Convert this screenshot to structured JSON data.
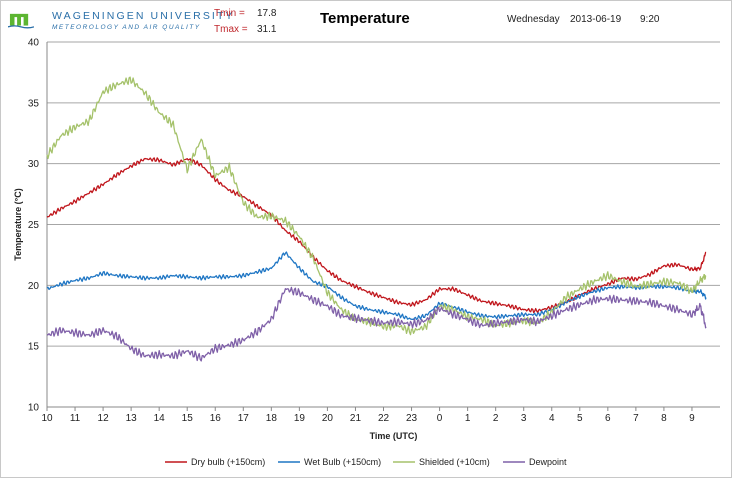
{
  "header": {
    "logo_title": "WAGENINGEN UNIVERSITY",
    "logo_subtitle": "METEOROLOGY AND AIR QUALITY",
    "tmin_label": "Tmin =",
    "tmin_value": "17.8",
    "tmax_label": "Tmax =",
    "tmax_value": "31.1",
    "weekday": "Wednesday",
    "date": "2013-06-19",
    "time": "9:20"
  },
  "colors": {
    "dry": "#c0161c",
    "wet": "#1f76c4",
    "shielded": "#a5c26b",
    "dew": "#7f60a8",
    "grid": "#a6a6a6",
    "logo_green": "#5cb531"
  },
  "chart_data": {
    "type": "line",
    "title": "Temperature",
    "xlabel": "Time (UTC)",
    "ylabel": "Temperature (°C)",
    "ylim": [
      10,
      40
    ],
    "yticks": [
      "10",
      "15",
      "20",
      "25",
      "30",
      "35",
      "40"
    ],
    "xtick_labels": [
      "10",
      "11",
      "12",
      "13",
      "14",
      "15",
      "16",
      "17",
      "18",
      "19",
      "20",
      "21",
      "22",
      "23",
      "0",
      "1",
      "2",
      "3",
      "4",
      "5",
      "6",
      "7",
      "8",
      "9"
    ],
    "xlim_hours_elapsed": [
      0,
      24
    ],
    "grid": true,
    "legend_position": "bottom",
    "series": [
      {
        "name": "Dry bulb (+150cm)",
        "color": "#c0161c",
        "points": [
          [
            0,
            25.6
          ],
          [
            0.5,
            26.3
          ],
          [
            1,
            26.9
          ],
          [
            1.5,
            27.6
          ],
          [
            2,
            28.3
          ],
          [
            2.5,
            29.1
          ],
          [
            3,
            29.8
          ],
          [
            3.5,
            30.4
          ],
          [
            4,
            30.3
          ],
          [
            4.5,
            29.9
          ],
          [
            5,
            30.4
          ],
          [
            5.5,
            29.9
          ],
          [
            6,
            28.7
          ],
          [
            6.5,
            27.8
          ],
          [
            7,
            27.3
          ],
          [
            7.5,
            26.5
          ],
          [
            8,
            25.8
          ],
          [
            8.5,
            24.5
          ],
          [
            9,
            23.6
          ],
          [
            9.5,
            22.3
          ],
          [
            10,
            21.2
          ],
          [
            10.5,
            20.4
          ],
          [
            11,
            19.9
          ],
          [
            11.5,
            19.4
          ],
          [
            12,
            19.0
          ],
          [
            12.5,
            18.6
          ],
          [
            13,
            18.4
          ],
          [
            13.5,
            18.8
          ],
          [
            14,
            19.7
          ],
          [
            14.5,
            19.7
          ],
          [
            15,
            19.2
          ],
          [
            15.5,
            18.7
          ],
          [
            16,
            18.5
          ],
          [
            16.5,
            18.3
          ],
          [
            17,
            18.0
          ],
          [
            17.5,
            17.9
          ],
          [
            18,
            18.2
          ],
          [
            18.5,
            18.6
          ],
          [
            19,
            19.2
          ],
          [
            19.5,
            19.7
          ],
          [
            20,
            20.1
          ],
          [
            20.5,
            20.6
          ],
          [
            21,
            20.5
          ],
          [
            21.5,
            20.9
          ],
          [
            22,
            21.6
          ],
          [
            22.5,
            21.7
          ],
          [
            23,
            21.3
          ],
          [
            23.3,
            21.4
          ],
          [
            23.5,
            22.7
          ]
        ]
      },
      {
        "name": "Wet Bulb (+150cm)",
        "color": "#1f76c4",
        "points": [
          [
            0,
            19.7
          ],
          [
            0.5,
            20.1
          ],
          [
            1,
            20.4
          ],
          [
            1.5,
            20.6
          ],
          [
            2,
            21.0
          ],
          [
            2.5,
            20.8
          ],
          [
            3,
            20.7
          ],
          [
            3.5,
            20.6
          ],
          [
            4,
            20.6
          ],
          [
            4.5,
            20.8
          ],
          [
            5,
            20.7
          ],
          [
            5.5,
            20.6
          ],
          [
            6,
            20.7
          ],
          [
            6.5,
            20.7
          ],
          [
            7,
            20.8
          ],
          [
            7.5,
            21.1
          ],
          [
            8,
            21.4
          ],
          [
            8.5,
            22.7
          ],
          [
            9,
            21.4
          ],
          [
            9.5,
            20.3
          ],
          [
            10,
            19.9
          ],
          [
            10.5,
            19.0
          ],
          [
            11,
            18.3
          ],
          [
            11.5,
            18.0
          ],
          [
            12,
            17.8
          ],
          [
            12.5,
            17.6
          ],
          [
            13,
            17.2
          ],
          [
            13.5,
            17.5
          ],
          [
            14,
            18.5
          ],
          [
            14.5,
            18.2
          ],
          [
            15,
            17.8
          ],
          [
            15.5,
            17.5
          ],
          [
            16,
            17.4
          ],
          [
            16.5,
            17.5
          ],
          [
            17,
            17.6
          ],
          [
            17.5,
            17.6
          ],
          [
            18,
            18.0
          ],
          [
            18.5,
            18.6
          ],
          [
            19,
            19.1
          ],
          [
            19.5,
            19.5
          ],
          [
            20,
            19.8
          ],
          [
            20.5,
            19.9
          ],
          [
            21,
            19.8
          ],
          [
            21.5,
            19.9
          ],
          [
            22,
            19.9
          ],
          [
            22.5,
            19.8
          ],
          [
            23,
            19.5
          ],
          [
            23.3,
            19.5
          ],
          [
            23.5,
            19.0
          ]
        ]
      },
      {
        "name": "Shielded (+10cm)",
        "color": "#a5c26b",
        "points": [
          [
            0,
            30.6
          ],
          [
            0.5,
            32.3
          ],
          [
            1,
            33.0
          ],
          [
            1.5,
            33.5
          ],
          [
            2,
            35.9
          ],
          [
            2.5,
            36.5
          ],
          [
            3,
            36.9
          ],
          [
            3.5,
            35.8
          ],
          [
            4,
            34.2
          ],
          [
            4.5,
            33.2
          ],
          [
            5,
            29.5
          ],
          [
            5.5,
            32.0
          ],
          [
            6,
            29.0
          ],
          [
            6.5,
            29.7
          ],
          [
            7,
            26.8
          ],
          [
            7.5,
            25.6
          ],
          [
            8,
            25.7
          ],
          [
            8.5,
            25.3
          ],
          [
            9,
            24.0
          ],
          [
            9.5,
            22.2
          ],
          [
            10,
            19.4
          ],
          [
            10.5,
            18.0
          ],
          [
            11,
            17.2
          ],
          [
            11.5,
            17.0
          ],
          [
            12,
            16.6
          ],
          [
            12.5,
            16.7
          ],
          [
            13,
            16.2
          ],
          [
            13.5,
            16.6
          ],
          [
            14,
            18.3
          ],
          [
            14.5,
            18.0
          ],
          [
            15,
            17.4
          ],
          [
            15.5,
            17.2
          ],
          [
            16,
            16.7
          ],
          [
            16.5,
            16.9
          ],
          [
            17,
            17.1
          ],
          [
            17.5,
            16.9
          ],
          [
            18,
            17.8
          ],
          [
            18.5,
            19.0
          ],
          [
            19,
            19.7
          ],
          [
            19.5,
            20.3
          ],
          [
            20,
            20.8
          ],
          [
            20.5,
            20.3
          ],
          [
            21,
            19.9
          ],
          [
            21.5,
            20.1
          ],
          [
            22,
            20.3
          ],
          [
            22.5,
            20.2
          ],
          [
            23,
            19.5
          ],
          [
            23.3,
            20.4
          ],
          [
            23.5,
            20.8
          ]
        ]
      },
      {
        "name": "Dewpoint",
        "color": "#7f60a8",
        "points": [
          [
            0,
            15.9
          ],
          [
            0.5,
            16.3
          ],
          [
            1,
            16.1
          ],
          [
            1.5,
            15.9
          ],
          [
            2,
            16.3
          ],
          [
            2.5,
            15.8
          ],
          [
            3,
            14.8
          ],
          [
            3.5,
            14.2
          ],
          [
            4,
            14.3
          ],
          [
            4.5,
            14.2
          ],
          [
            5,
            14.6
          ],
          [
            5.5,
            14.0
          ],
          [
            6,
            14.8
          ],
          [
            6.5,
            15.1
          ],
          [
            7,
            15.5
          ],
          [
            7.5,
            16.2
          ],
          [
            8,
            17.2
          ],
          [
            8.5,
            19.7
          ],
          [
            9,
            19.4
          ],
          [
            9.5,
            18.8
          ],
          [
            10,
            18.3
          ],
          [
            10.5,
            17.5
          ],
          [
            11,
            17.3
          ],
          [
            11.5,
            17.1
          ],
          [
            12,
            16.9
          ],
          [
            12.5,
            17.0
          ],
          [
            13,
            16.8
          ],
          [
            13.5,
            17.1
          ],
          [
            14,
            18.1
          ],
          [
            14.5,
            17.6
          ],
          [
            15,
            17.2
          ],
          [
            15.5,
            16.7
          ],
          [
            16,
            16.9
          ],
          [
            16.5,
            17.0
          ],
          [
            17,
            17.2
          ],
          [
            17.5,
            17.0
          ],
          [
            18,
            17.5
          ],
          [
            18.5,
            18.0
          ],
          [
            19,
            18.4
          ],
          [
            19.5,
            18.8
          ],
          [
            20,
            18.9
          ],
          [
            20.5,
            18.8
          ],
          [
            21,
            18.7
          ],
          [
            21.5,
            18.6
          ],
          [
            22,
            18.3
          ],
          [
            22.5,
            18.0
          ],
          [
            23,
            17.6
          ],
          [
            23.3,
            18.3
          ],
          [
            23.5,
            16.6
          ]
        ]
      }
    ]
  }
}
